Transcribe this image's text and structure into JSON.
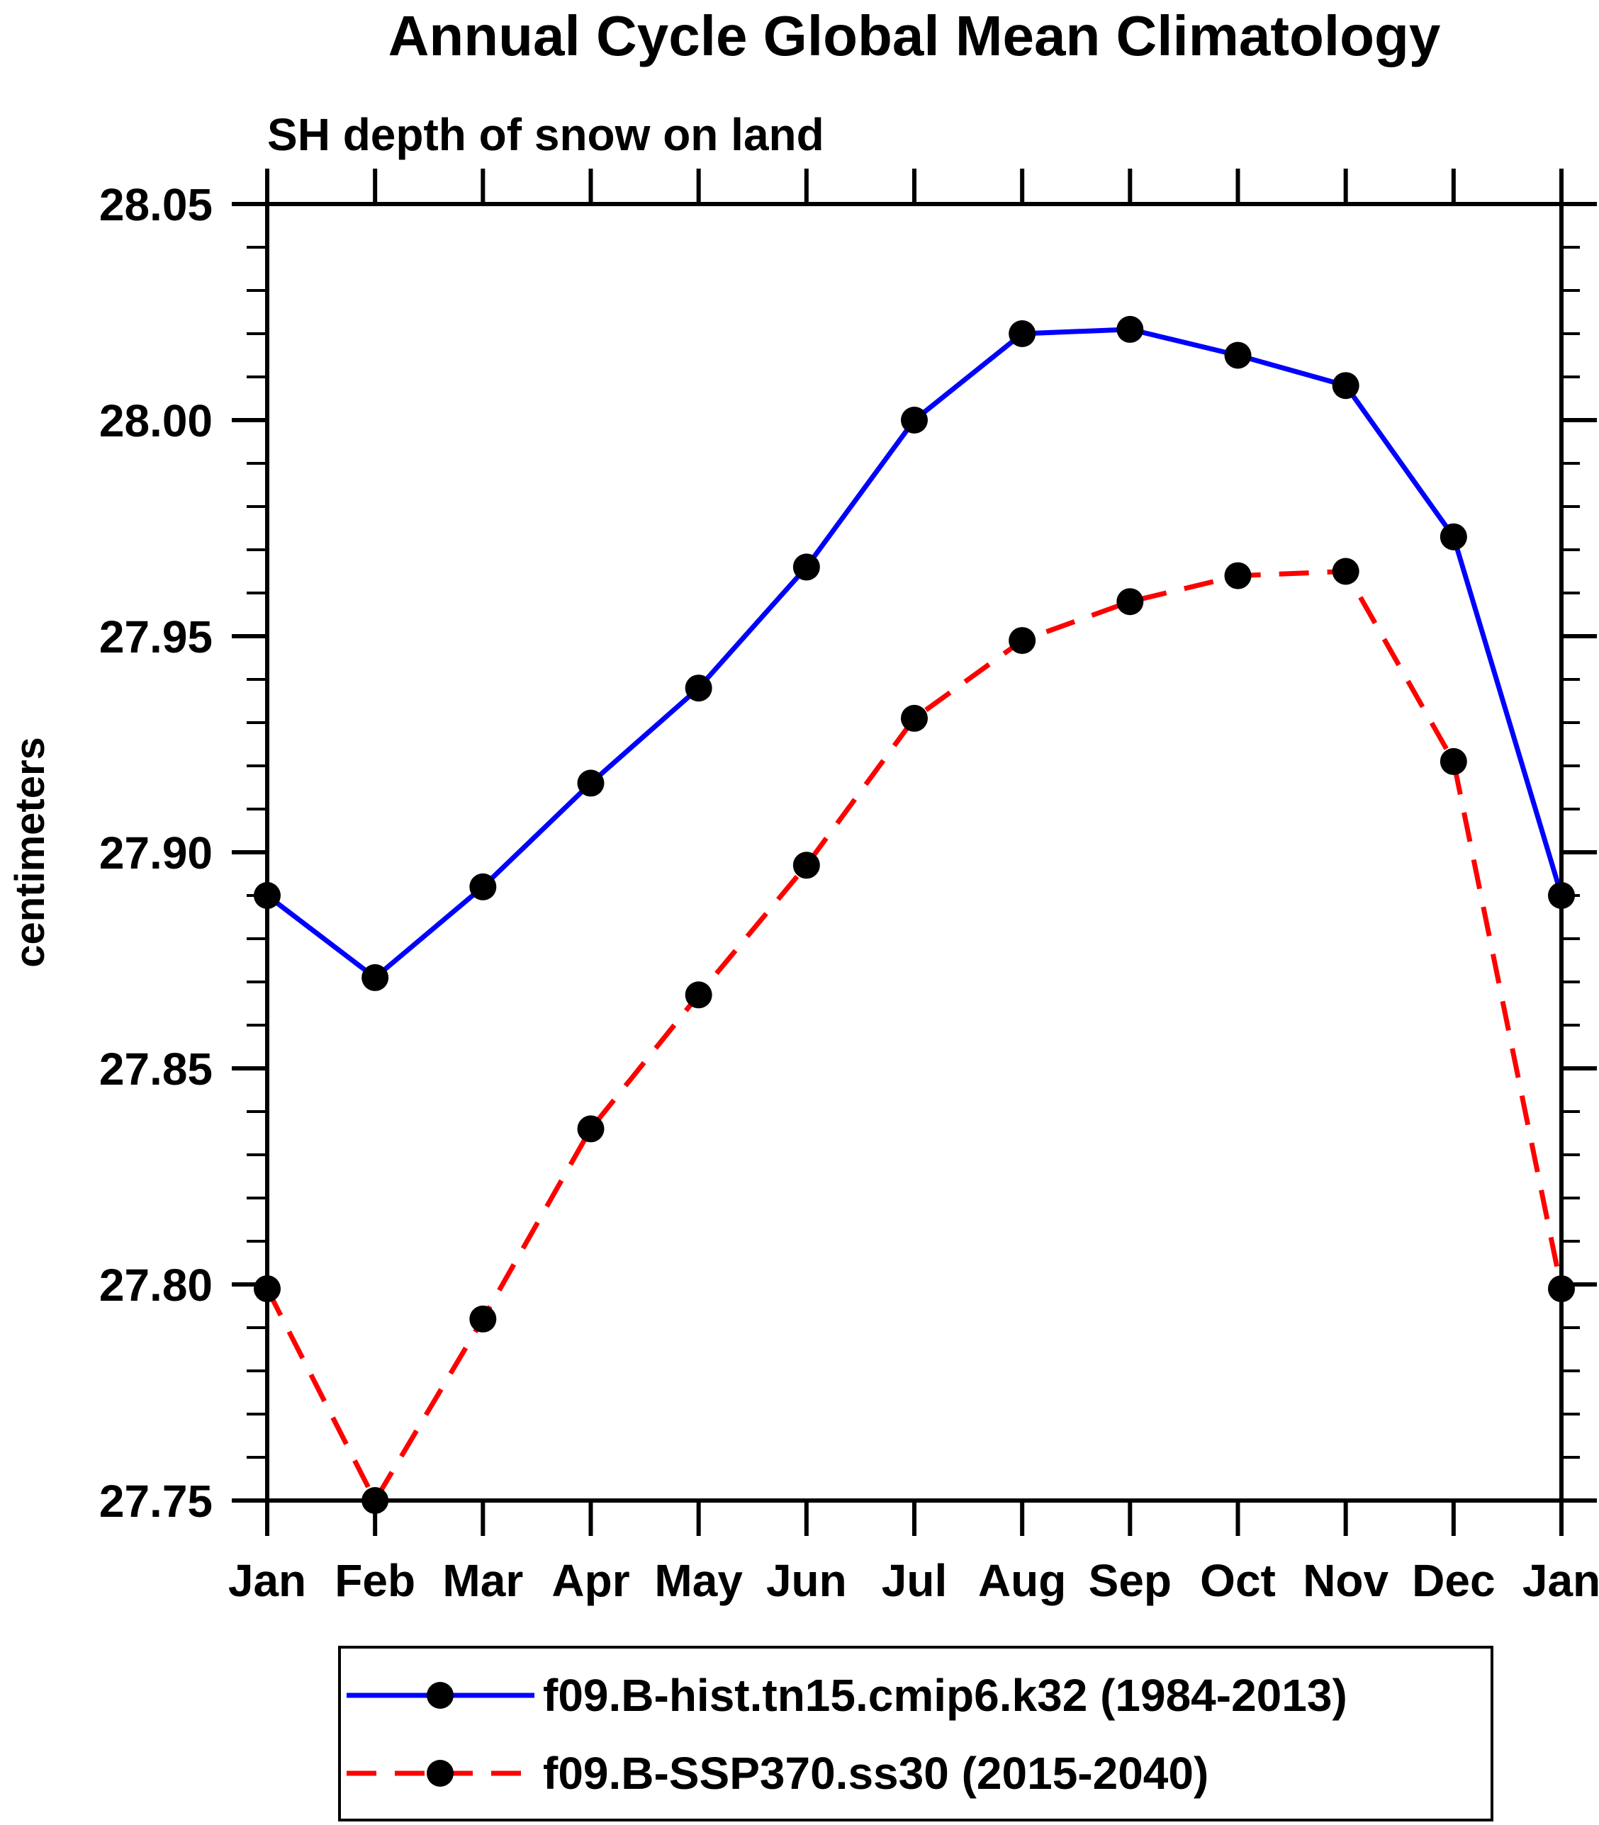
{
  "page": {
    "background_color": "#ffffff",
    "axis_color": "#000000",
    "marker_color": "#000000"
  },
  "chart_data": {
    "type": "line",
    "title": "Annual Cycle Global Mean Climatology",
    "subtitle": "SH depth of snow on land",
    "ylabel": "centimeters",
    "xlabel": "",
    "categories": [
      "Jan",
      "Feb",
      "Mar",
      "Apr",
      "May",
      "Jun",
      "Jul",
      "Aug",
      "Sep",
      "Oct",
      "Nov",
      "Dec",
      "Jan"
    ],
    "ylim": [
      27.75,
      28.05
    ],
    "ytick_step": 0.05,
    "ytick_minor_step": 0.01,
    "ytick_labels": [
      "28.05",
      "28.00",
      "27.95",
      "27.90",
      "27.85",
      "27.80",
      "27.75"
    ],
    "grid": false,
    "legend_position": "bottom",
    "series": [
      {
        "name": "f09.B-hist.tn15.cmip6.k32 (1984-2013)",
        "color": "#0000ff",
        "line_style": "solid",
        "dasharray": "",
        "values": [
          27.89,
          27.871,
          27.892,
          27.916,
          27.938,
          27.966,
          28.0,
          28.02,
          28.021,
          28.015,
          28.008,
          27.973,
          27.89
        ]
      },
      {
        "name": "f09.B-SSP370.ss30 (2015-2040)",
        "color": "#ff0000",
        "line_style": "dashed",
        "dasharray": "42 26",
        "values": [
          27.799,
          27.75,
          27.792,
          27.836,
          27.867,
          27.897,
          27.931,
          27.949,
          27.958,
          27.964,
          27.965,
          27.921,
          27.799
        ]
      }
    ]
  }
}
